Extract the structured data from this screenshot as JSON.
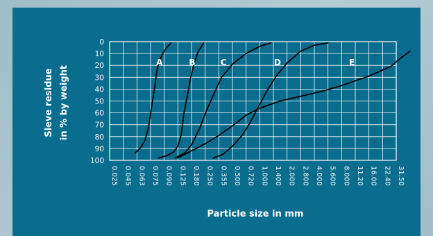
{
  "chart_data": {
    "type": "line",
    "ylabel_line1": "Sieve residue",
    "ylabel_line2": "in % by weight",
    "xlabel": "Particle size in mm",
    "y_ticks": [
      "0",
      "10",
      "20",
      "30",
      "40",
      "50",
      "60",
      "70",
      "80",
      "90",
      "100"
    ],
    "x_ticks": [
      "0.025",
      "0.045",
      "0.063",
      "0.075",
      "0.090",
      "0.125",
      "0.180",
      "0.250",
      "0.355",
      "0.500",
      "0.720",
      "1.000",
      "1.400",
      "2.000",
      "2.800",
      "4.000",
      "5.600",
      "8.000",
      "11.20",
      "16.00",
      "22.40",
      "31.50"
    ],
    "ylim": [
      0,
      100
    ],
    "grid": true,
    "series": [
      {
        "name": "A",
        "points": [
          [
            1.85,
            94
          ],
          [
            2.3,
            89
          ],
          [
            2.6,
            83
          ],
          [
            2.85,
            72
          ],
          [
            3.05,
            57
          ],
          [
            3.3,
            38
          ],
          [
            3.5,
            22
          ],
          [
            3.8,
            12
          ],
          [
            4.1,
            6
          ],
          [
            4.5,
            1
          ]
        ]
      },
      {
        "name": "B",
        "points": [
          [
            3.6,
            98
          ],
          [
            4.2,
            96
          ],
          [
            4.7,
            93
          ],
          [
            5.0,
            88
          ],
          [
            5.25,
            78
          ],
          [
            5.45,
            60
          ],
          [
            5.7,
            45
          ],
          [
            5.95,
            30
          ],
          [
            6.2,
            18
          ],
          [
            6.5,
            8
          ],
          [
            6.9,
            1
          ]
        ]
      },
      {
        "name": "C",
        "points": [
          [
            4.8,
            98
          ],
          [
            5.5,
            94
          ],
          [
            6.0,
            87
          ],
          [
            6.6,
            73
          ],
          [
            7.1,
            58
          ],
          [
            7.6,
            45
          ],
          [
            8.2,
            30
          ],
          [
            9.0,
            19
          ],
          [
            10.0,
            10
          ],
          [
            11.0,
            4
          ],
          [
            11.8,
            1
          ]
        ]
      },
      {
        "name": "D",
        "points": [
          [
            7.6,
            98
          ],
          [
            8.3,
            95
          ],
          [
            9.0,
            88
          ],
          [
            9.7,
            79
          ],
          [
            10.3,
            68
          ],
          [
            10.9,
            55
          ],
          [
            11.5,
            42
          ],
          [
            12.2,
            29
          ],
          [
            13.0,
            18
          ],
          [
            14.0,
            8
          ],
          [
            15.0,
            3
          ],
          [
            16.0,
            1
          ]
        ]
      },
      {
        "name": "E",
        "points": [
          [
            5.0,
            98
          ],
          [
            6.0,
            92
          ],
          [
            7.0,
            86
          ],
          [
            8.0,
            79
          ],
          [
            9.0,
            71
          ],
          [
            10.0,
            62
          ],
          [
            11.0,
            56
          ],
          [
            12.5,
            50
          ],
          [
            14.0,
            46
          ],
          [
            15.5,
            42
          ],
          [
            17.0,
            37
          ],
          [
            18.0,
            33
          ],
          [
            19.0,
            29
          ],
          [
            20.0,
            24
          ],
          [
            20.6,
            21
          ],
          [
            21.2,
            15
          ],
          [
            22.0,
            8
          ]
        ]
      }
    ]
  },
  "curve_labels": [
    {
      "text": "A",
      "x_index": 3.65,
      "y": 17
    },
    {
      "text": "B",
      "x_index": 6.05,
      "y": 17
    },
    {
      "text": "C",
      "x_index": 8.35,
      "y": 17
    },
    {
      "text": "D",
      "x_index": 12.3,
      "y": 17
    },
    {
      "text": "E",
      "x_index": 17.75,
      "y": 17
    }
  ]
}
